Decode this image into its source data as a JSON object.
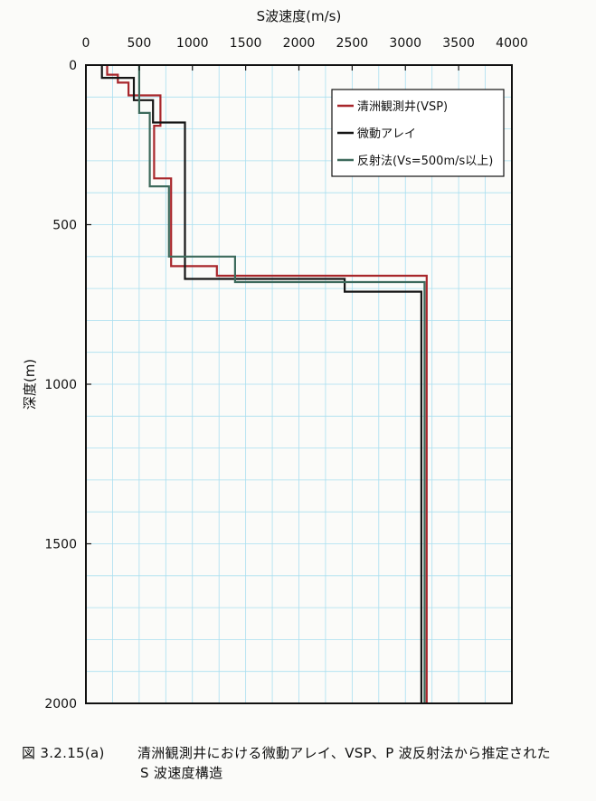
{
  "chart_data": {
    "type": "line",
    "title": "",
    "xlabel": "S波速度(m/s)",
    "ylabel": "深度(m)",
    "xlim": [
      0,
      4000
    ],
    "ylim": [
      0,
      2000
    ],
    "y_inverted": true,
    "x_axis_position": "top",
    "x_ticks": [
      0,
      500,
      1000,
      1500,
      2000,
      2500,
      3000,
      3500,
      4000
    ],
    "y_ticks": [
      0,
      500,
      1000,
      1500,
      2000
    ],
    "grid": true,
    "legend_position": "top-right",
    "series": [
      {
        "name": "清洲観測井(VSP)",
        "color": "#a8262b",
        "points": [
          [
            200,
            0
          ],
          [
            200,
            30
          ],
          [
            300,
            30
          ],
          [
            300,
            55
          ],
          [
            400,
            55
          ],
          [
            400,
            95
          ],
          [
            700,
            95
          ],
          [
            700,
            190
          ],
          [
            640,
            190
          ],
          [
            640,
            355
          ],
          [
            800,
            355
          ],
          [
            800,
            630
          ],
          [
            1230,
            630
          ],
          [
            1230,
            660
          ],
          [
            3200,
            660
          ],
          [
            3200,
            2000
          ]
        ]
      },
      {
        "name": "微動アレイ",
        "color": "#151515",
        "points": [
          [
            150,
            0
          ],
          [
            150,
            40
          ],
          [
            450,
            40
          ],
          [
            450,
            110
          ],
          [
            630,
            110
          ],
          [
            630,
            180
          ],
          [
            930,
            180
          ],
          [
            930,
            670
          ],
          [
            2430,
            670
          ],
          [
            2430,
            710
          ],
          [
            3150,
            710
          ],
          [
            3150,
            2000
          ]
        ]
      },
      {
        "name": "反射法(Vs=500m/s以上)",
        "color": "#3d6a5c",
        "points": [
          [
            500,
            0
          ],
          [
            500,
            150
          ],
          [
            600,
            150
          ],
          [
            600,
            380
          ],
          [
            780,
            380
          ],
          [
            780,
            600
          ],
          [
            1400,
            600
          ],
          [
            1400,
            680
          ],
          [
            3180,
            680
          ],
          [
            3180,
            2000
          ]
        ]
      }
    ]
  },
  "caption": {
    "number": "図 3.2.15(a)",
    "line1": "清洲観測井における微動アレイ、VSP、P 波反射法から推定された",
    "line2": "S 波速度構造"
  },
  "colors": {
    "grid": "#a9dff0",
    "frame": "#111111"
  }
}
